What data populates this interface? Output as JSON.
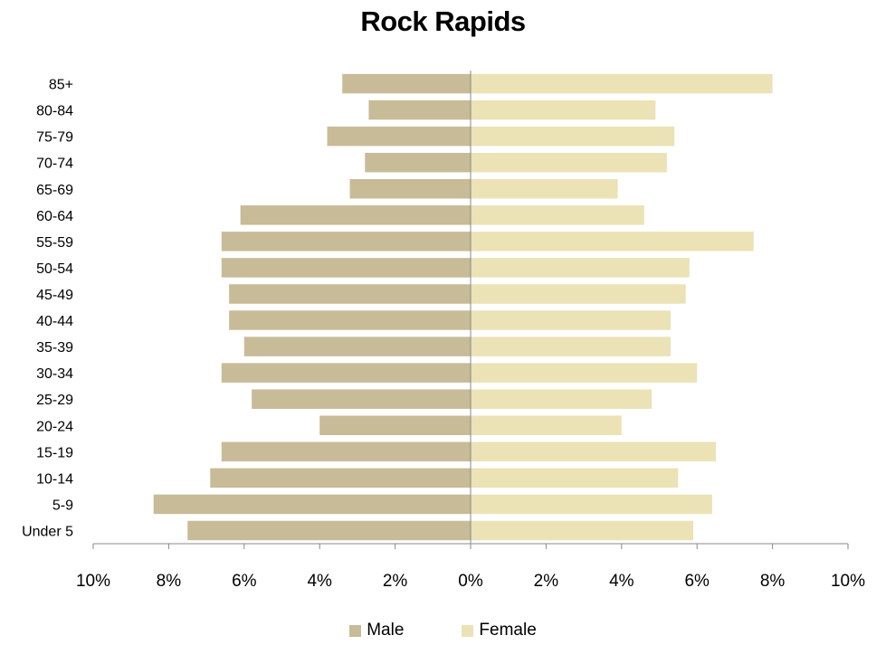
{
  "chart_data": {
    "type": "bar",
    "orientation": "horizontal",
    "title": "Rock Rapids",
    "categories": [
      "Under 5",
      "5-9",
      "10-14",
      "15-19",
      "20-24",
      "25-29",
      "30-34",
      "35-39",
      "40-44",
      "45-49",
      "50-54",
      "55-59",
      "60-64",
      "65-69",
      "70-74",
      "75-79",
      "80-84",
      "85+"
    ],
    "series": [
      {
        "name": "Male",
        "color": "#c8bb98",
        "values": [
          7.5,
          8.4,
          6.9,
          6.6,
          4.0,
          5.8,
          6.6,
          6.0,
          6.4,
          6.4,
          6.6,
          6.6,
          6.1,
          3.2,
          2.8,
          3.8,
          2.7,
          3.4
        ]
      },
      {
        "name": "Female",
        "color": "#ebe2b6",
        "values": [
          5.9,
          6.4,
          5.5,
          6.5,
          4.0,
          4.8,
          6.0,
          5.3,
          5.3,
          5.7,
          5.8,
          7.5,
          4.6,
          3.9,
          5.2,
          5.4,
          4.9,
          8.0
        ]
      }
    ],
    "xlim": [
      -10,
      10
    ],
    "xticks": [
      "10%",
      "8%",
      "6%",
      "4%",
      "2%",
      "0%",
      "2%",
      "4%",
      "6%",
      "8%",
      "10%"
    ],
    "legend_position": "bottom",
    "grid": false
  }
}
